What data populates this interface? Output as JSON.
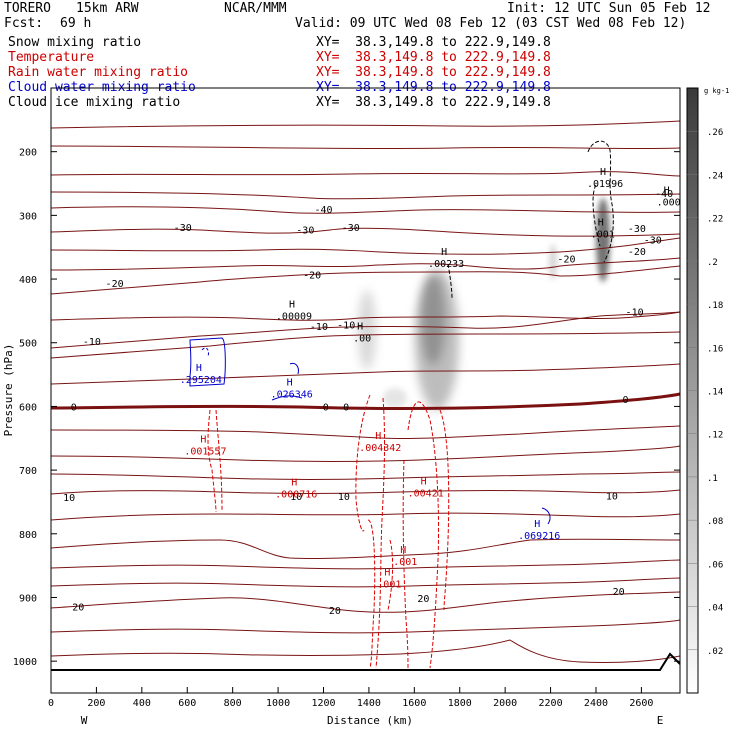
{
  "header": {
    "model": "TORERO",
    "resolution": "15km ARW",
    "org": "NCAR/MMM",
    "init": "Init: 12 UTC Sun 05 Feb 12",
    "fcst_label": "Fcst:",
    "fcst_value": "69 h",
    "valid": "Valid: 09 UTC Wed 08 Feb 12 (03 CST Wed 08 Feb 12)"
  },
  "fields": [
    {
      "name": "Snow mixing ratio",
      "xy": "XY=  38.3,149.8 to 222.9,149.8",
      "color": "#000000"
    },
    {
      "name": "Temperature",
      "xy": "XY=  38.3,149.8 to 222.9,149.8",
      "color": "#cc0000"
    },
    {
      "name": "Rain water mixing ratio",
      "xy": "XY=  38.3,149.8 to 222.9,149.8",
      "color": "#cc0000"
    },
    {
      "name": "Cloud water mixing ratio",
      "xy": "XY=  38.3,149.8 to 222.9,149.8",
      "color": "#0000cc"
    },
    {
      "name": "Cloud ice mixing ratio",
      "xy": "XY=  38.3,149.8 to 222.9,149.8",
      "color": "#000000"
    }
  ],
  "chart_data": {
    "type": "heatmap",
    "xlabel": "Distance (km)",
    "ylabel": "Pressure (hPa)",
    "xlim": [
      0,
      2770
    ],
    "ylim": [
      1050,
      100
    ],
    "x_ticks": [
      0,
      200,
      400,
      600,
      800,
      1000,
      1200,
      1400,
      1600,
      1800,
      2000,
      2200,
      2400,
      2600
    ],
    "y_ticks": [
      200,
      300,
      400,
      500,
      600,
      700,
      800,
      900,
      1000
    ],
    "x_left_label": "W",
    "x_right_label": "E",
    "colorbar": {
      "unit": "g kg-1",
      "ticks": [
        ".02",
        ".04",
        ".06",
        ".08",
        ".1",
        ".12",
        ".14",
        ".16",
        ".18",
        ".2",
        ".22",
        ".24",
        ".26"
      ]
    },
    "temperature_contours": [
      {
        "label": "-40",
        "x": 1200,
        "p": 290
      },
      {
        "label": "-40",
        "x": 2700,
        "p": 265
      },
      {
        "label": "-30",
        "x": 580,
        "p": 318
      },
      {
        "label": "-30",
        "x": 1120,
        "p": 322
      },
      {
        "label": "-30",
        "x": 1320,
        "p": 318
      },
      {
        "label": "-30",
        "x": 2580,
        "p": 320
      },
      {
        "label": "-30",
        "x": 2650,
        "p": 338
      },
      {
        "label": "-20",
        "x": 280,
        "p": 406
      },
      {
        "label": "-20",
        "x": 1150,
        "p": 393
      },
      {
        "label": "-20",
        "x": 2270,
        "p": 368
      },
      {
        "label": "-20",
        "x": 2580,
        "p": 356
      },
      {
        "label": "-10",
        "x": 180,
        "p": 497
      },
      {
        "label": "-10",
        "x": 1180,
        "p": 474
      },
      {
        "label": "-10",
        "x": 1300,
        "p": 471
      },
      {
        "label": "-10",
        "x": 2570,
        "p": 451
      },
      {
        "label": "0",
        "x": 100,
        "p": 600
      },
      {
        "label": "0",
        "x": 1210,
        "p": 600
      },
      {
        "label": "0",
        "x": 1300,
        "p": 600
      },
      {
        "label": "0",
        "x": 2530,
        "p": 588
      },
      {
        "label": "10",
        "x": 80,
        "p": 742
      },
      {
        "label": "10",
        "x": 1080,
        "p": 741
      },
      {
        "label": "10",
        "x": 1290,
        "p": 741
      },
      {
        "label": "10",
        "x": 2470,
        "p": 740
      },
      {
        "label": "20",
        "x": 120,
        "p": 914
      },
      {
        "label": "20",
        "x": 1250,
        "p": 920
      },
      {
        "label": "20",
        "x": 1640,
        "p": 901
      },
      {
        "label": "20",
        "x": 2500,
        "p": 890
      }
    ],
    "maxima": [
      {
        "field": "cloud_ice",
        "value": ".01996",
        "x": 2440,
        "p": 252
      },
      {
        "field": "cloud_ice",
        "value": ".00233",
        "x": 1740,
        "p": 378
      },
      {
        "field": "cloud_ice",
        "value": ".00009",
        "x": 1070,
        "p": 460
      },
      {
        "field": "cloud_ice",
        "value": ".00",
        "x": 1370,
        "p": 495
      },
      {
        "field": "cloud_ice",
        "value": ".001",
        "x": 2430,
        "p": 332
      },
      {
        "field": "cloud_ice",
        "value": ".000",
        "x": 2720,
        "p": 281
      },
      {
        "field": "cloud_water",
        "value": ".295204",
        "x": 660,
        "p": 560
      },
      {
        "field": "cloud_water",
        "value": ".026346",
        "x": 1060,
        "p": 583
      },
      {
        "field": "cloud_water",
        "value": ".069216",
        "x": 2150,
        "p": 805
      },
      {
        "field": "rain",
        "value": ".001557",
        "x": 680,
        "p": 672
      },
      {
        "field": "rain",
        "value": ".004342",
        "x": 1450,
        "p": 667
      },
      {
        "field": "rain",
        "value": ".000716",
        "x": 1080,
        "p": 740
      },
      {
        "field": "rain",
        "value": ".00421",
        "x": 1650,
        "p": 738
      },
      {
        "field": "rain",
        "value": ".001",
        "x": 1560,
        "p": 846
      },
      {
        "field": "rain",
        "value": ".001",
        "x": 1490,
        "p": 881
      }
    ]
  }
}
